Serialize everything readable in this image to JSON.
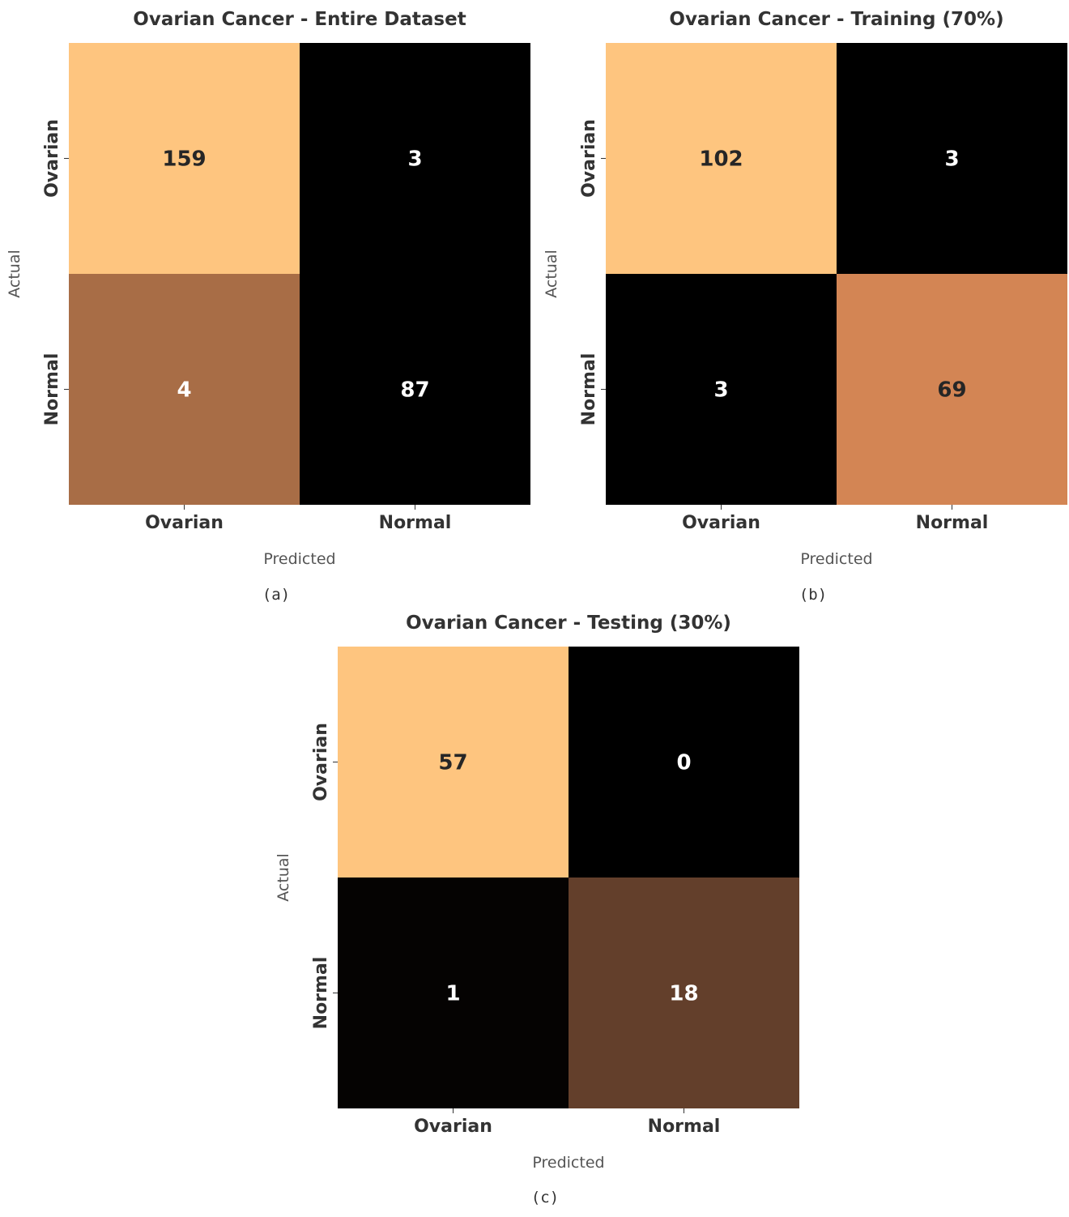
{
  "chart_data": [
    {
      "type": "heatmap",
      "title": "Ovarian Cancer - Entire Dataset",
      "xlabel": "Predicted",
      "ylabel": "Actual",
      "x_categories": [
        "Ovarian",
        "Normal"
      ],
      "y_categories": [
        "Ovarian",
        "Normal"
      ],
      "values": [
        [
          159,
          3
        ],
        [
          4,
          87
        ]
      ],
      "cell_colors": [
        [
          "#fec57f",
          "#000000"
        ],
        [
          "#a86d46",
          "#000000"
        ]
      ],
      "caption": "(a)"
    },
    {
      "type": "heatmap",
      "title": "Ovarian Cancer - Training (70%)",
      "xlabel": "Predicted",
      "ylabel": "Actual",
      "x_categories": [
        "Ovarian",
        "Normal"
      ],
      "y_categories": [
        "Ovarian",
        "Normal"
      ],
      "values": [
        [
          102,
          3
        ],
        [
          3,
          69
        ]
      ],
      "cell_colors": [
        [
          "#fec57f",
          "#000000"
        ],
        [
          "#000000",
          "#d38554"
        ]
      ],
      "caption": "(b)"
    },
    {
      "type": "heatmap",
      "title": "Ovarian Cancer - Testing (30%)",
      "xlabel": "Predicted",
      "ylabel": "Actual",
      "x_categories": [
        "Ovarian",
        "Normal"
      ],
      "y_categories": [
        "Ovarian",
        "Normal"
      ],
      "values": [
        [
          57,
          0
        ],
        [
          1,
          18
        ]
      ],
      "cell_colors": [
        [
          "#fec57f",
          "#000000"
        ],
        [
          "#050302",
          "#633f2b"
        ]
      ],
      "caption": "(c)"
    }
  ],
  "colors": {
    "dark_text": "#262626",
    "light_text": "#ffffff"
  }
}
